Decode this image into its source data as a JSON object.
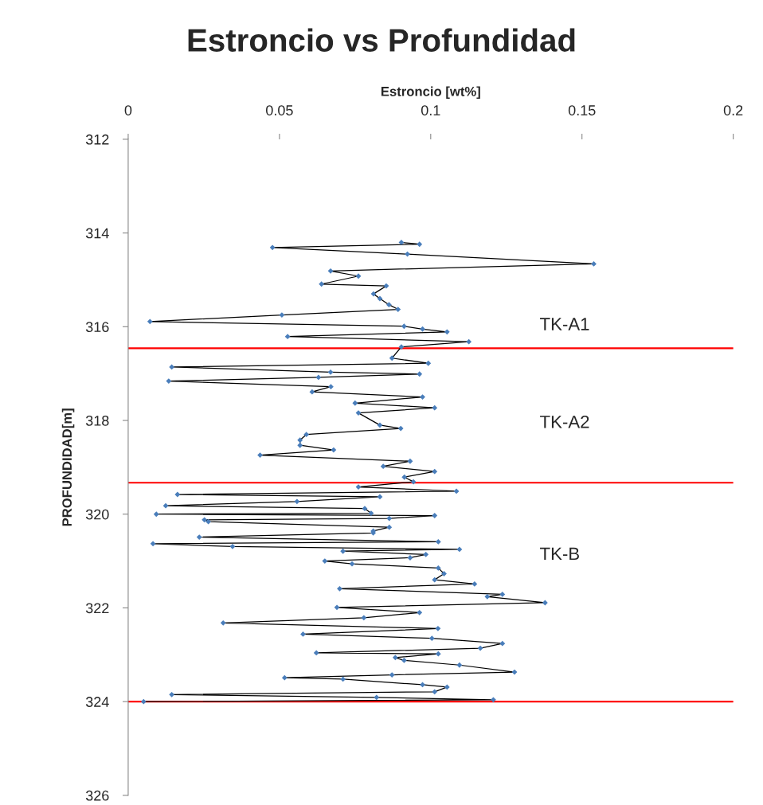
{
  "chart_data": {
    "type": "line",
    "title": "Estroncio vs Profundidad",
    "xlabel": "Estroncio [wt%]",
    "ylabel": "PROFUNDIDAD[m]",
    "xlim": [
      0,
      0.2
    ],
    "xticks": [
      0,
      0.05,
      0.1,
      0.15,
      0.2
    ],
    "ylim": [
      326,
      312
    ],
    "yticks": [
      312,
      314,
      316,
      318,
      320,
      322,
      324,
      326
    ],
    "grid": false,
    "series": [
      {
        "color": "#000000",
        "marker": "none",
        "x": [
          0.0903,
          0.0963,
          0.0477,
          0.0923,
          0.1539,
          0.0669,
          0.0761,
          0.0639,
          0.0853,
          0.0811,
          0.0832,
          0.0862,
          0.0892,
          0.0508,
          0.0072,
          0.0912,
          0.0973,
          0.1054,
          0.0527,
          0.1126,
          0.0903,
          0.0872,
          0.0992,
          0.0144,
          0.0669,
          0.0963,
          0.0629,
          0.0134,
          0.067,
          0.0608,
          0.0973,
          0.075,
          0.1013,
          0.0761,
          0.0832,
          0.0901,
          0.0589,
          0.0568,
          0.0568,
          0.0679,
          0.0436,
          0.0932,
          0.0843,
          0.1013,
          0.0913,
          0.0943,
          0.0761,
          0.1085,
          0.0163,
          0.0832,
          0.0558,
          0.0124,
          0.0782,
          0.0803,
          0.0093,
          0.1013,
          0.0863,
          0.0252,
          0.0265,
          0.0863,
          0.081,
          0.081,
          0.0235,
          0.1025,
          0.0082,
          0.0345,
          0.1095,
          0.071,
          0.0984,
          0.0932,
          0.065,
          0.074,
          0.1025,
          0.1044,
          0.1013,
          0.1145,
          0.0699,
          0.1237,
          0.1187,
          0.1378,
          0.069,
          0.0963,
          0.0779,
          0.0314,
          0.1024,
          0.0578,
          0.1004,
          0.1237,
          0.1164,
          0.0622,
          0.1025,
          0.0883,
          0.0912,
          0.1095,
          0.1277,
          0.0872,
          0.0517,
          0.071,
          0.0973,
          0.1054,
          0.1013,
          0.0144,
          0.0821,
          0.1207,
          0.0051
        ],
        "values": [
          314.2,
          314.24,
          314.31,
          314.45,
          314.66,
          314.81,
          314.92,
          315.09,
          315.13,
          315.3,
          315.4,
          315.53,
          315.63,
          315.75,
          315.89,
          315.99,
          316.05,
          316.11,
          316.21,
          316.32,
          316.43,
          316.67,
          316.78,
          316.86,
          316.97,
          317.01,
          317.08,
          317.16,
          317.28,
          317.39,
          317.5,
          317.63,
          317.73,
          317.84,
          318.1,
          318.17,
          318.3,
          318.42,
          318.53,
          318.63,
          318.74,
          318.87,
          318.98,
          319.09,
          319.21,
          319.31,
          319.42,
          319.51,
          319.58,
          319.63,
          319.73,
          319.82,
          319.88,
          319.98,
          320.0,
          320.03,
          320.09,
          320.12,
          320.16,
          320.28,
          320.36,
          320.4,
          320.49,
          320.59,
          320.63,
          320.69,
          320.75,
          320.79,
          320.86,
          320.93,
          321.0,
          321.06,
          321.15,
          321.27,
          321.4,
          321.49,
          321.59,
          321.71,
          321.76,
          321.89,
          321.99,
          322.1,
          322.21,
          322.32,
          322.44,
          322.56,
          322.65,
          322.76,
          322.86,
          322.96,
          322.98,
          323.06,
          323.12,
          323.22,
          323.37,
          323.43,
          323.49,
          323.52,
          323.64,
          323.69,
          323.79,
          323.85,
          323.91,
          323.96,
          324.0
        ]
      },
      {
        "type": "scatter",
        "color": "#4a7ebb",
        "marker": "diamond",
        "x": [
          0.0903,
          0.0963,
          0.0477,
          0.0923,
          0.1539,
          0.0669,
          0.0761,
          0.0639,
          0.0853,
          0.0811,
          0.0832,
          0.0862,
          0.0892,
          0.0508,
          0.0072,
          0.0912,
          0.0973,
          0.1054,
          0.0527,
          0.1126,
          0.0903,
          0.0872,
          0.0992,
          0.0144,
          0.0669,
          0.0963,
          0.0629,
          0.0134,
          0.067,
          0.0608,
          0.0973,
          0.075,
          0.1013,
          0.0761,
          0.0832,
          0.0901,
          0.0589,
          0.0568,
          0.0568,
          0.0679,
          0.0436,
          0.0932,
          0.0843,
          0.1013,
          0.0913,
          0.0943,
          0.0761,
          0.1085,
          0.0163,
          0.0832,
          0.0558,
          0.0124,
          0.0782,
          0.0803,
          0.0093,
          0.1013,
          0.0863,
          0.0252,
          0.0265,
          0.0863,
          0.081,
          0.081,
          0.0235,
          0.1025,
          0.0082,
          0.0345,
          0.1095,
          0.071,
          0.0984,
          0.0932,
          0.065,
          0.074,
          0.1025,
          0.1044,
          0.1013,
          0.1145,
          0.0699,
          0.1237,
          0.1187,
          0.1378,
          0.069,
          0.0963,
          0.0779,
          0.0314,
          0.1024,
          0.0578,
          0.1004,
          0.1237,
          0.1164,
          0.0622,
          0.1025,
          0.0883,
          0.0912,
          0.1095,
          0.1277,
          0.0872,
          0.0517,
          0.071,
          0.0973,
          0.1054,
          0.1013,
          0.0144,
          0.0821,
          0.1207,
          0.0051
        ],
        "values": [
          314.2,
          314.24,
          314.31,
          314.45,
          314.66,
          314.81,
          314.92,
          315.09,
          315.13,
          315.3,
          315.4,
          315.53,
          315.63,
          315.75,
          315.89,
          315.99,
          316.05,
          316.11,
          316.21,
          316.32,
          316.43,
          316.67,
          316.78,
          316.86,
          316.97,
          317.01,
          317.08,
          317.16,
          317.28,
          317.39,
          317.5,
          317.63,
          317.73,
          317.84,
          318.1,
          318.17,
          318.3,
          318.42,
          318.53,
          318.63,
          318.74,
          318.87,
          318.98,
          319.09,
          319.21,
          319.31,
          319.42,
          319.51,
          319.58,
          319.63,
          319.73,
          319.82,
          319.88,
          319.98,
          320.0,
          320.03,
          320.09,
          320.12,
          320.16,
          320.28,
          320.36,
          320.4,
          320.49,
          320.59,
          320.63,
          320.69,
          320.75,
          320.79,
          320.86,
          320.93,
          321.0,
          321.06,
          321.15,
          321.27,
          321.4,
          321.49,
          321.59,
          321.71,
          321.76,
          321.89,
          321.99,
          322.1,
          322.21,
          322.32,
          322.44,
          322.56,
          322.65,
          322.76,
          322.86,
          322.96,
          322.98,
          323.06,
          323.12,
          323.22,
          323.37,
          323.43,
          323.49,
          323.52,
          323.64,
          323.69,
          323.79,
          323.85,
          323.91,
          323.96,
          324.0
        ]
      }
    ],
    "ref_lines": [
      {
        "axis": "y",
        "value": 316.46,
        "color": "#ff0000"
      },
      {
        "axis": "y",
        "value": 319.33,
        "color": "#ff0000"
      },
      {
        "axis": "y",
        "value": 324.0,
        "color": "#ff0000"
      }
    ],
    "annotations": [
      "TK-A1",
      "TK-A2",
      "TK-B"
    ]
  }
}
